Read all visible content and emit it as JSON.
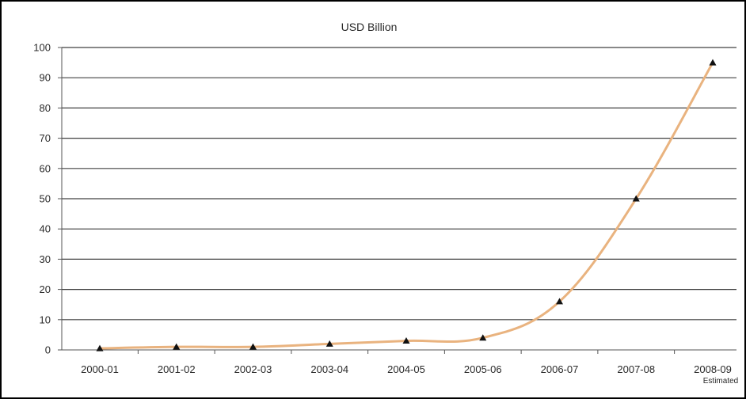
{
  "chart_data": {
    "type": "line",
    "title": "USD Billion",
    "xlabel": "",
    "ylabel": "",
    "categories": [
      "2000-01",
      "2001-02",
      "2002-03",
      "2003-04",
      "2004-05",
      "2005-06",
      "2006-07",
      "2007-08",
      "2008-09"
    ],
    "category_notes": [
      "",
      "",
      "",
      "",
      "",
      "",
      "",
      "",
      "Estimated"
    ],
    "series": [
      {
        "values": [
          0.5,
          1,
          1,
          2,
          3,
          4,
          16,
          50,
          95
        ]
      }
    ],
    "ylim": [
      0,
      100
    ],
    "yticks": [
      0,
      10,
      20,
      30,
      40,
      50,
      60,
      70,
      80,
      90,
      100
    ],
    "grid": true,
    "legend": "none",
    "colors": {
      "line": "#e9b37f",
      "marker": "#111111",
      "grid": "#404040",
      "axis": "#555555",
      "frame": "#000000"
    }
  }
}
